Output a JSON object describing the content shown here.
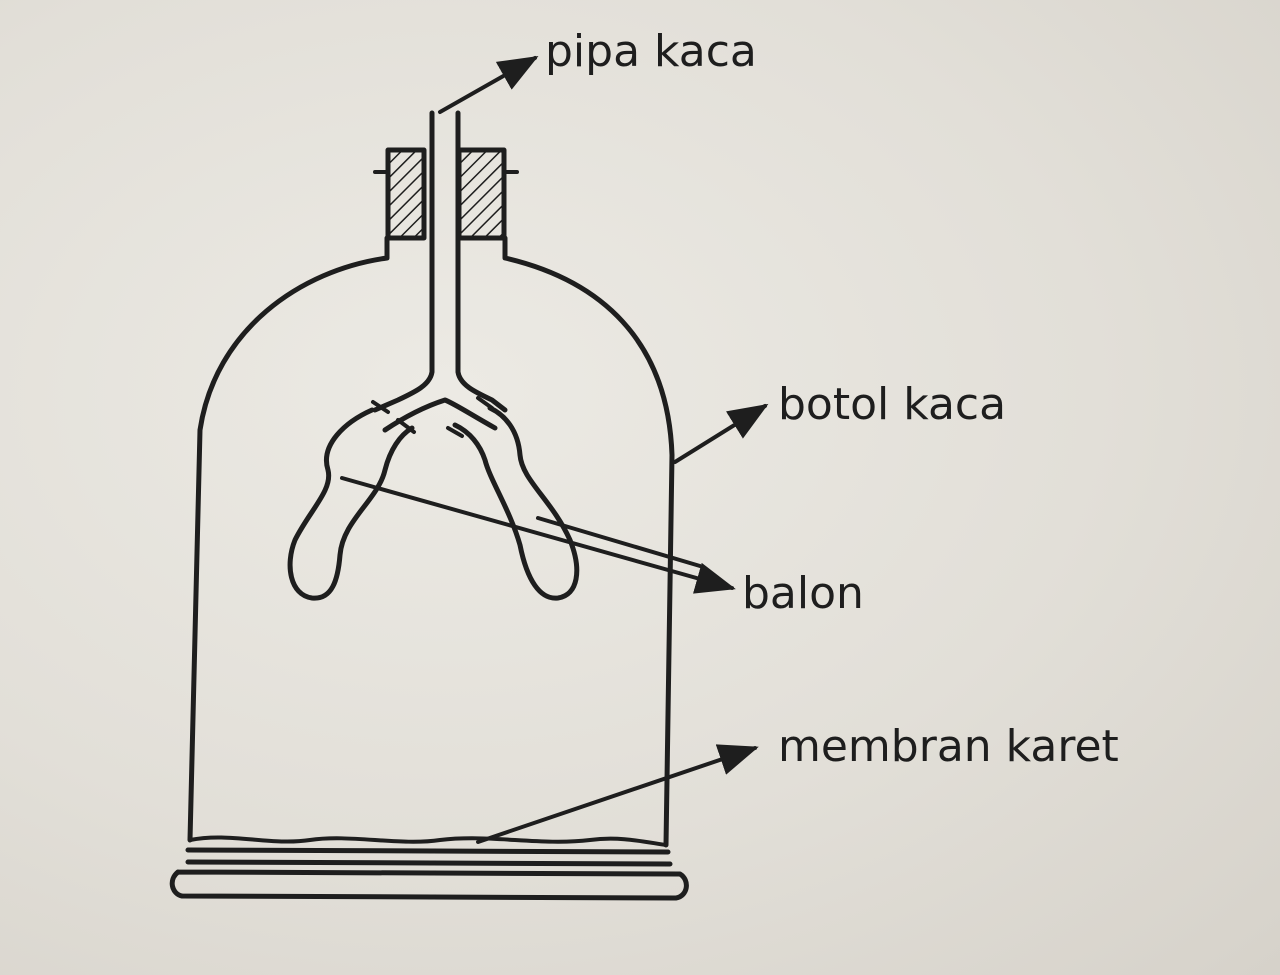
{
  "labels": {
    "pipe": "pipa kaca",
    "bottle": "botol kaca",
    "balloon": "balon",
    "membrane": "membran karet"
  },
  "colors": {
    "paper": "#e4e1db",
    "ink": "#1e1e1e"
  }
}
